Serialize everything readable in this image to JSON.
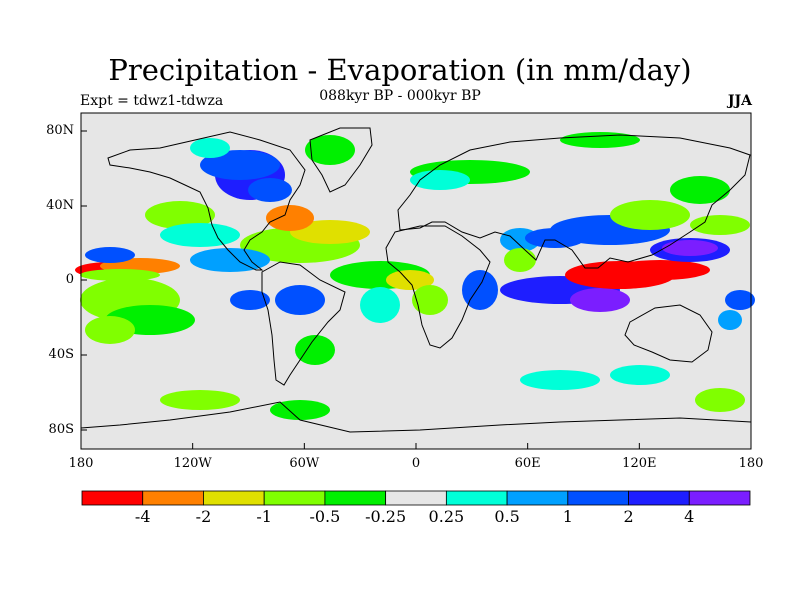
{
  "title": "Precipitation - Evaporation (in mm/day)",
  "subtitle": "088kyr BP - 000kyr BP",
  "left_label": "Expt = tdwz1-tdwza",
  "right_label": "JJA",
  "y_ticks": [
    "80N",
    "40N",
    "0",
    "40S",
    "80S"
  ],
  "x_ticks": [
    "180",
    "120W",
    "60W",
    "0",
    "60E",
    "120E",
    "180"
  ],
  "colorbar": {
    "colors": [
      "#ff0000",
      "#ff8000",
      "#e0e000",
      "#80ff00",
      "#00f000",
      "#e6e6e6",
      "#00ffd8",
      "#00a0ff",
      "#0050ff",
      "#1e1eff",
      "#7b1eff"
    ],
    "labels": [
      "-4",
      "-2",
      "-1",
      "-0.5",
      "-0.25",
      "0.25",
      "0.5",
      "1",
      "2",
      "4"
    ]
  },
  "map_background": "#e6e6e6"
}
